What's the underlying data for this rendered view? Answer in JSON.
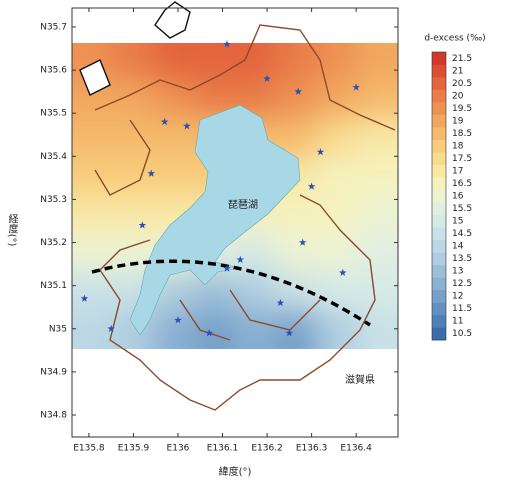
{
  "chart_data": {
    "type": "contour-map",
    "xlabel": "緯度(°)",
    "ylabel": "経度(°)",
    "lake_label": "琵琶湖",
    "region_label": "滋賀県",
    "xlim": [
      135.762,
      136.494
    ],
    "ylim": [
      34.749,
      35.744
    ],
    "xticks": [
      {
        "value": 135.8,
        "label": "E135.8"
      },
      {
        "value": 135.9,
        "label": "E135.9"
      },
      {
        "value": 136,
        "label": "E136"
      },
      {
        "value": 136.1,
        "label": "E136.1"
      },
      {
        "value": 136.2,
        "label": "E136.2"
      },
      {
        "value": 136.3,
        "label": "E136.3"
      },
      {
        "value": 136.4,
        "label": "E136.4"
      }
    ],
    "yticks": [
      {
        "value": 34.8,
        "label": "N34.8"
      },
      {
        "value": 34.9,
        "label": "N34.9"
      },
      {
        "value": 35,
        "label": "N35"
      },
      {
        "value": 35.1,
        "label": "N35.1"
      },
      {
        "value": 35.2,
        "label": "N35.2"
      },
      {
        "value": 35.3,
        "label": "N35.3"
      },
      {
        "value": 35.4,
        "label": "N35.4"
      },
      {
        "value": 35.5,
        "label": "N35.5"
      },
      {
        "value": 35.6,
        "label": "N35.6"
      },
      {
        "value": 35.7,
        "label": "N35.7"
      }
    ],
    "colorbar": {
      "title": "d-excess (‰)",
      "levels": [
        10.5,
        11,
        11.5,
        12,
        12.5,
        13,
        13.5,
        14,
        14.5,
        15,
        15.5,
        16,
        16.5,
        17,
        17.5,
        18,
        18.5,
        19,
        19.5,
        20,
        20.5,
        21,
        21.5
      ],
      "colors": [
        "#3b6cab",
        "#4f81b9",
        "#6290c2",
        "#76a0ca",
        "#8ab0d2",
        "#9cbfd9",
        "#aecde0",
        "#bcd8e4",
        "#c9e1e6",
        "#d5e9e6",
        "#e1efe2",
        "#ecf3d3",
        "#f5f2bd",
        "#f8e8a4",
        "#f9db8e",
        "#f8cc7c",
        "#f5ba6c",
        "#f2a75f",
        "#ee9253",
        "#e97c48",
        "#e3653d",
        "#db4e33",
        "#d2372b"
      ]
    },
    "field": {
      "lon": [
        135.808,
        135.899,
        135.991,
        136.082,
        136.174,
        136.265,
        136.357,
        136.448
      ],
      "lat": [
        35.621,
        35.532,
        35.443,
        35.354,
        35.266,
        35.177,
        35.088,
        34.999
      ],
      "values": [
        [
          19.5,
          20,
          20.5,
          20.5,
          20.5,
          20,
          19.5,
          19
        ],
        [
          19,
          19,
          19.5,
          20,
          20,
          19.5,
          19,
          18.5
        ],
        [
          18.5,
          18.5,
          18.5,
          18.5,
          18.5,
          18.5,
          17.5,
          17
        ],
        [
          18,
          18,
          18,
          18,
          17.5,
          17,
          16.5,
          16.5
        ],
        [
          17,
          17,
          17,
          17,
          16.5,
          16.5,
          16.5,
          16
        ],
        [
          16,
          16,
          16,
          15.5,
          15,
          16,
          16,
          15.5
        ],
        [
          14.5,
          14.5,
          13.5,
          13,
          13.5,
          14.5,
          15,
          15
        ],
        [
          14,
          13.5,
          12.5,
          12,
          12.5,
          12,
          13.5,
          14.5
        ]
      ]
    },
    "stations": {
      "lon": [
        136.11,
        136.2,
        136.27,
        136.4,
        135.97,
        136.02,
        135.94,
        136.32,
        136.3,
        136.14,
        135.79,
        135.85,
        136.23,
        136.0,
        136.07,
        136.25,
        136.37,
        136.11,
        135.92,
        136.28
      ],
      "lat": [
        35.66,
        35.58,
        35.55,
        35.56,
        35.48,
        35.47,
        35.36,
        35.41,
        35.33,
        35.16,
        35.07,
        35.0,
        35.06,
        35.02,
        34.99,
        34.99,
        35.13,
        35.14,
        35.24,
        35.2
      ]
    }
  }
}
